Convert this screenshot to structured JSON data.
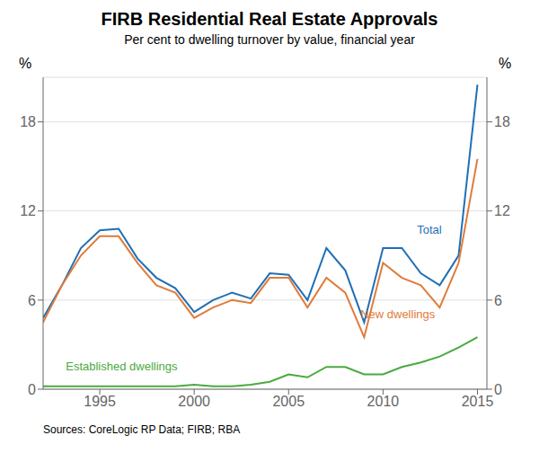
{
  "chart_data": {
    "type": "line",
    "title": "FIRB Residential Real Estate Approvals",
    "subtitle": "Per cent to dwelling turnover by value, financial year",
    "source": "Sources:  CoreLogic RP Data; FIRB; RBA",
    "ylabel": "%",
    "y2label": "%",
    "x": [
      1992,
      1993,
      1994,
      1995,
      1996,
      1997,
      1998,
      1999,
      2000,
      2001,
      2002,
      2003,
      2004,
      2005,
      2006,
      2007,
      2008,
      2009,
      2010,
      2011,
      2012,
      2013,
      2014,
      2015
    ],
    "xlim": [
      1992,
      2015.5
    ],
    "xticks": [
      1995,
      2000,
      2005,
      2010,
      2015
    ],
    "ylim": [
      0,
      21
    ],
    "yticks": [
      0,
      6,
      12,
      18
    ],
    "y2lim": [
      0,
      21
    ],
    "y2ticks": [
      0,
      6,
      12,
      18
    ],
    "grid": true,
    "series": [
      {
        "name": "Total",
        "color": "#1f6fb5",
        "values": [
          4.8,
          7.0,
          9.5,
          10.7,
          10.8,
          8.8,
          7.5,
          6.8,
          5.2,
          6.0,
          6.5,
          6.1,
          7.8,
          7.7,
          6.0,
          9.5,
          8.0,
          4.5,
          9.5,
          9.5,
          7.8,
          7.0,
          9.0,
          20.5
        ]
      },
      {
        "name": "New dwellings",
        "color": "#e07b39",
        "values": [
          4.5,
          7.0,
          9.0,
          10.3,
          10.3,
          8.5,
          7.0,
          6.5,
          4.8,
          5.5,
          6.0,
          5.8,
          7.5,
          7.5,
          5.5,
          7.5,
          6.5,
          3.5,
          8.5,
          7.5,
          7.0,
          5.5,
          8.5,
          15.5
        ]
      },
      {
        "name": "Established dwellings",
        "color": "#4aaa3f",
        "values": [
          0.2,
          0.2,
          0.2,
          0.2,
          0.2,
          0.2,
          0.2,
          0.2,
          0.3,
          0.2,
          0.2,
          0.3,
          0.5,
          1.0,
          0.8,
          1.5,
          1.5,
          1.0,
          1.0,
          1.5,
          1.8,
          2.2,
          2.8,
          3.5
        ]
      }
    ],
    "annotations": [
      {
        "text": "Total",
        "x": 2011.8,
        "y": 10.5,
        "color": "#1f6fb5"
      },
      {
        "text": "New dwellings",
        "x": 2008.8,
        "y": 4.8,
        "color": "#e07b39"
      },
      {
        "text": "Established dwellings",
        "x": 1993.2,
        "y": 1.3,
        "color": "#4aaa3f"
      }
    ]
  }
}
